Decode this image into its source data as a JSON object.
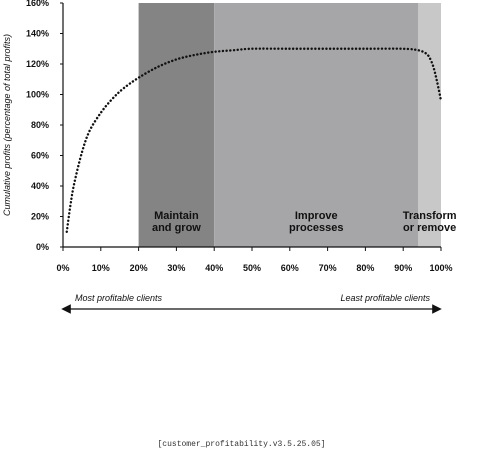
{
  "chart_data": {
    "type": "line",
    "title": "",
    "ylabel": "Cumulative profits (percentage of total profits)",
    "xlabel": "",
    "xlim": [
      0,
      100
    ],
    "ylim": [
      0,
      160
    ],
    "xticks": [
      "0%",
      "10%",
      "20%",
      "30%",
      "40%",
      "50%",
      "60%",
      "70%",
      "80%",
      "90%",
      "100%"
    ],
    "yticks": [
      "0%",
      "20%",
      "40%",
      "60%",
      "80%",
      "100%",
      "120%",
      "140%",
      "160%"
    ],
    "line_style": "dotted",
    "series": [
      {
        "x": [
          1,
          2,
          3,
          5,
          7,
          10,
          13,
          16,
          20,
          25,
          30,
          35,
          40,
          45,
          50,
          60,
          70,
          80,
          90,
          94,
          96,
          97,
          98,
          99,
          100
        ],
        "y": [
          10,
          28,
          42,
          62,
          76,
          88,
          97,
          104,
          111,
          118,
          123,
          126,
          128,
          129,
          130,
          130,
          130,
          130,
          130,
          129,
          127,
          124,
          118,
          108,
          96
        ]
      }
    ],
    "regions": [
      {
        "label_line1": "Maintain",
        "label_line2": "and grow",
        "x_start": 20,
        "x_end": 40,
        "color": "#848484"
      },
      {
        "label_line1": "Improve",
        "label_line2": "processes",
        "x_start": 40,
        "x_end": 94,
        "color": "#a6a6a8"
      },
      {
        "label_line1": "Transform",
        "label_line2": "or remove",
        "x_start": 94,
        "x_end": 100,
        "color": "#c8c8c8"
      }
    ],
    "arrow": {
      "left_label": "Most profitable clients",
      "right_label": "Least profitable clients"
    }
  },
  "footer": {
    "version": "[customer_profitability.v3.5.25.05]"
  }
}
